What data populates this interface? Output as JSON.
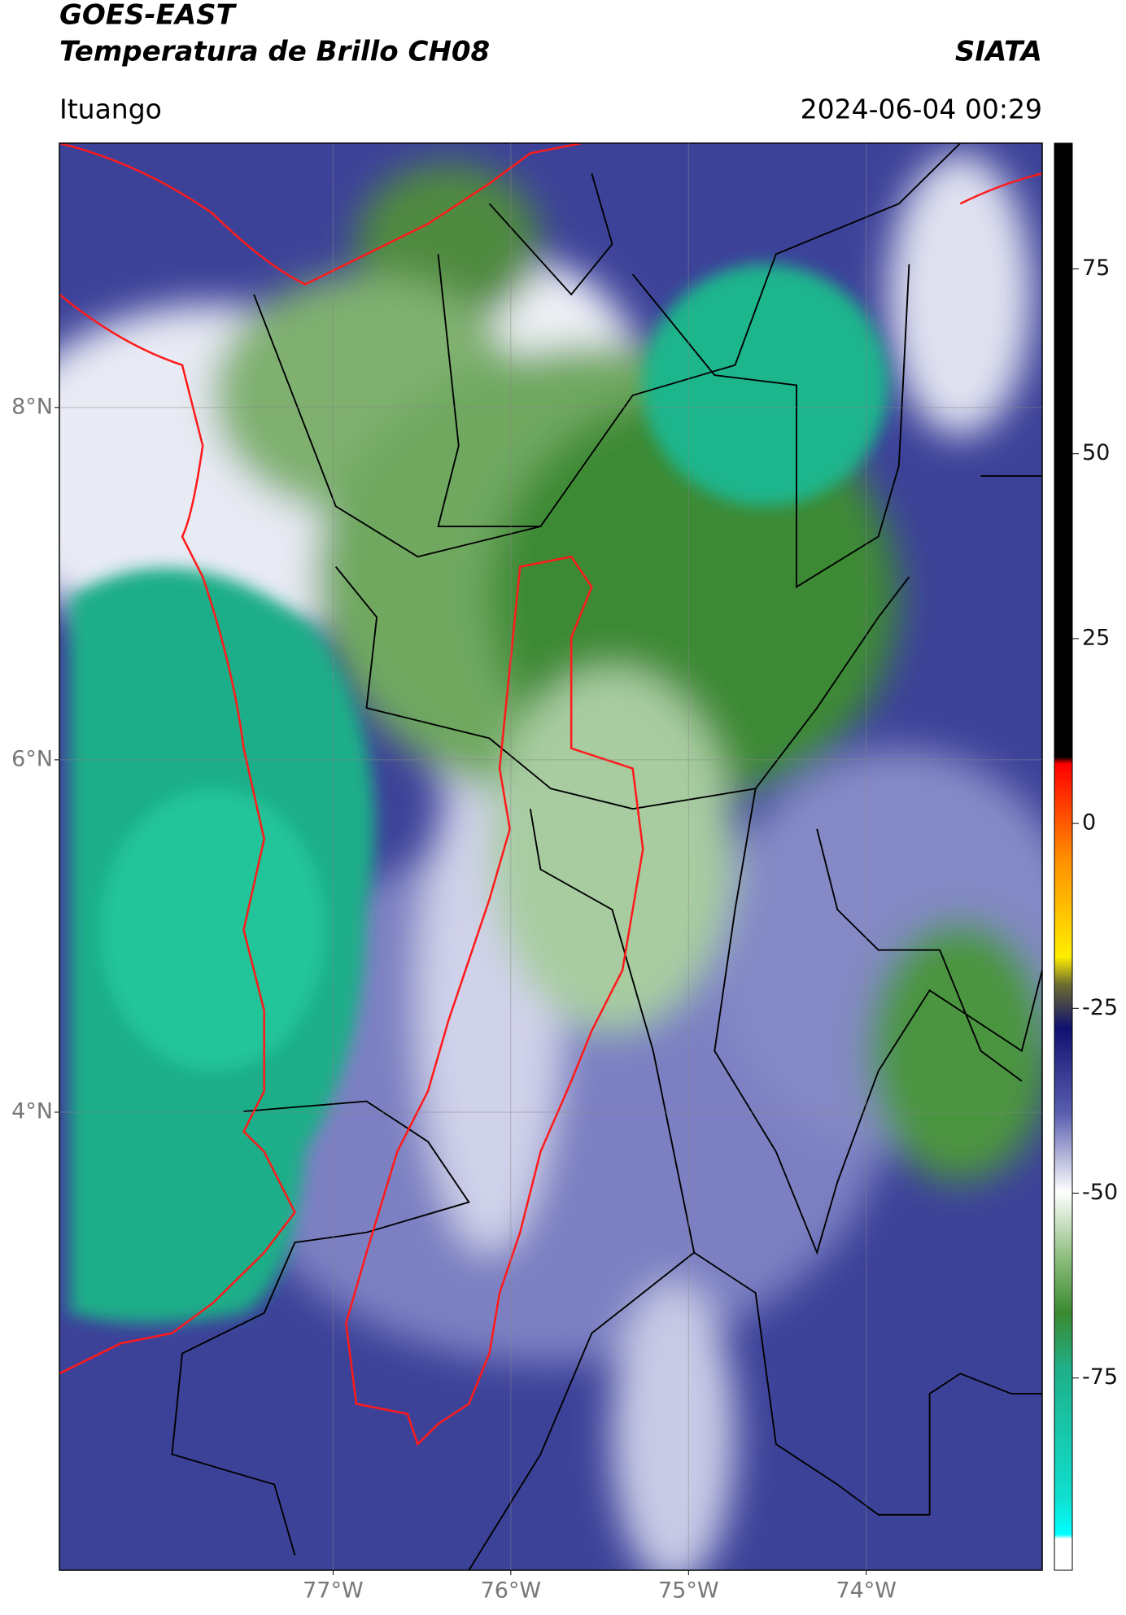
{
  "header": {
    "title_line1": "GOES-EAST",
    "title_line2": "Temperatura de Brillo CH08",
    "org": "SIATA",
    "location": "Ituango",
    "datetime": "2024-06-04 00:29"
  },
  "map": {
    "lat_range": [
      1.4,
      9.5
    ],
    "lon_range": [
      -78.54,
      -73.01
    ],
    "lat_ticks": [
      {
        "value": 8,
        "label": "8°N"
      },
      {
        "value": 6,
        "label": "6°N"
      },
      {
        "value": 4,
        "label": "4°N"
      }
    ],
    "lon_ticks": [
      {
        "value": -77,
        "label": "77°W"
      },
      {
        "value": -76,
        "label": "76°W"
      },
      {
        "value": -75,
        "label": "75°W"
      },
      {
        "value": -74,
        "label": "74°W"
      }
    ],
    "grid": true
  },
  "colorbar": {
    "range": [
      -101,
      92
    ],
    "ticks": [
      75,
      50,
      25,
      0,
      -25,
      -50,
      -75
    ]
  }
}
